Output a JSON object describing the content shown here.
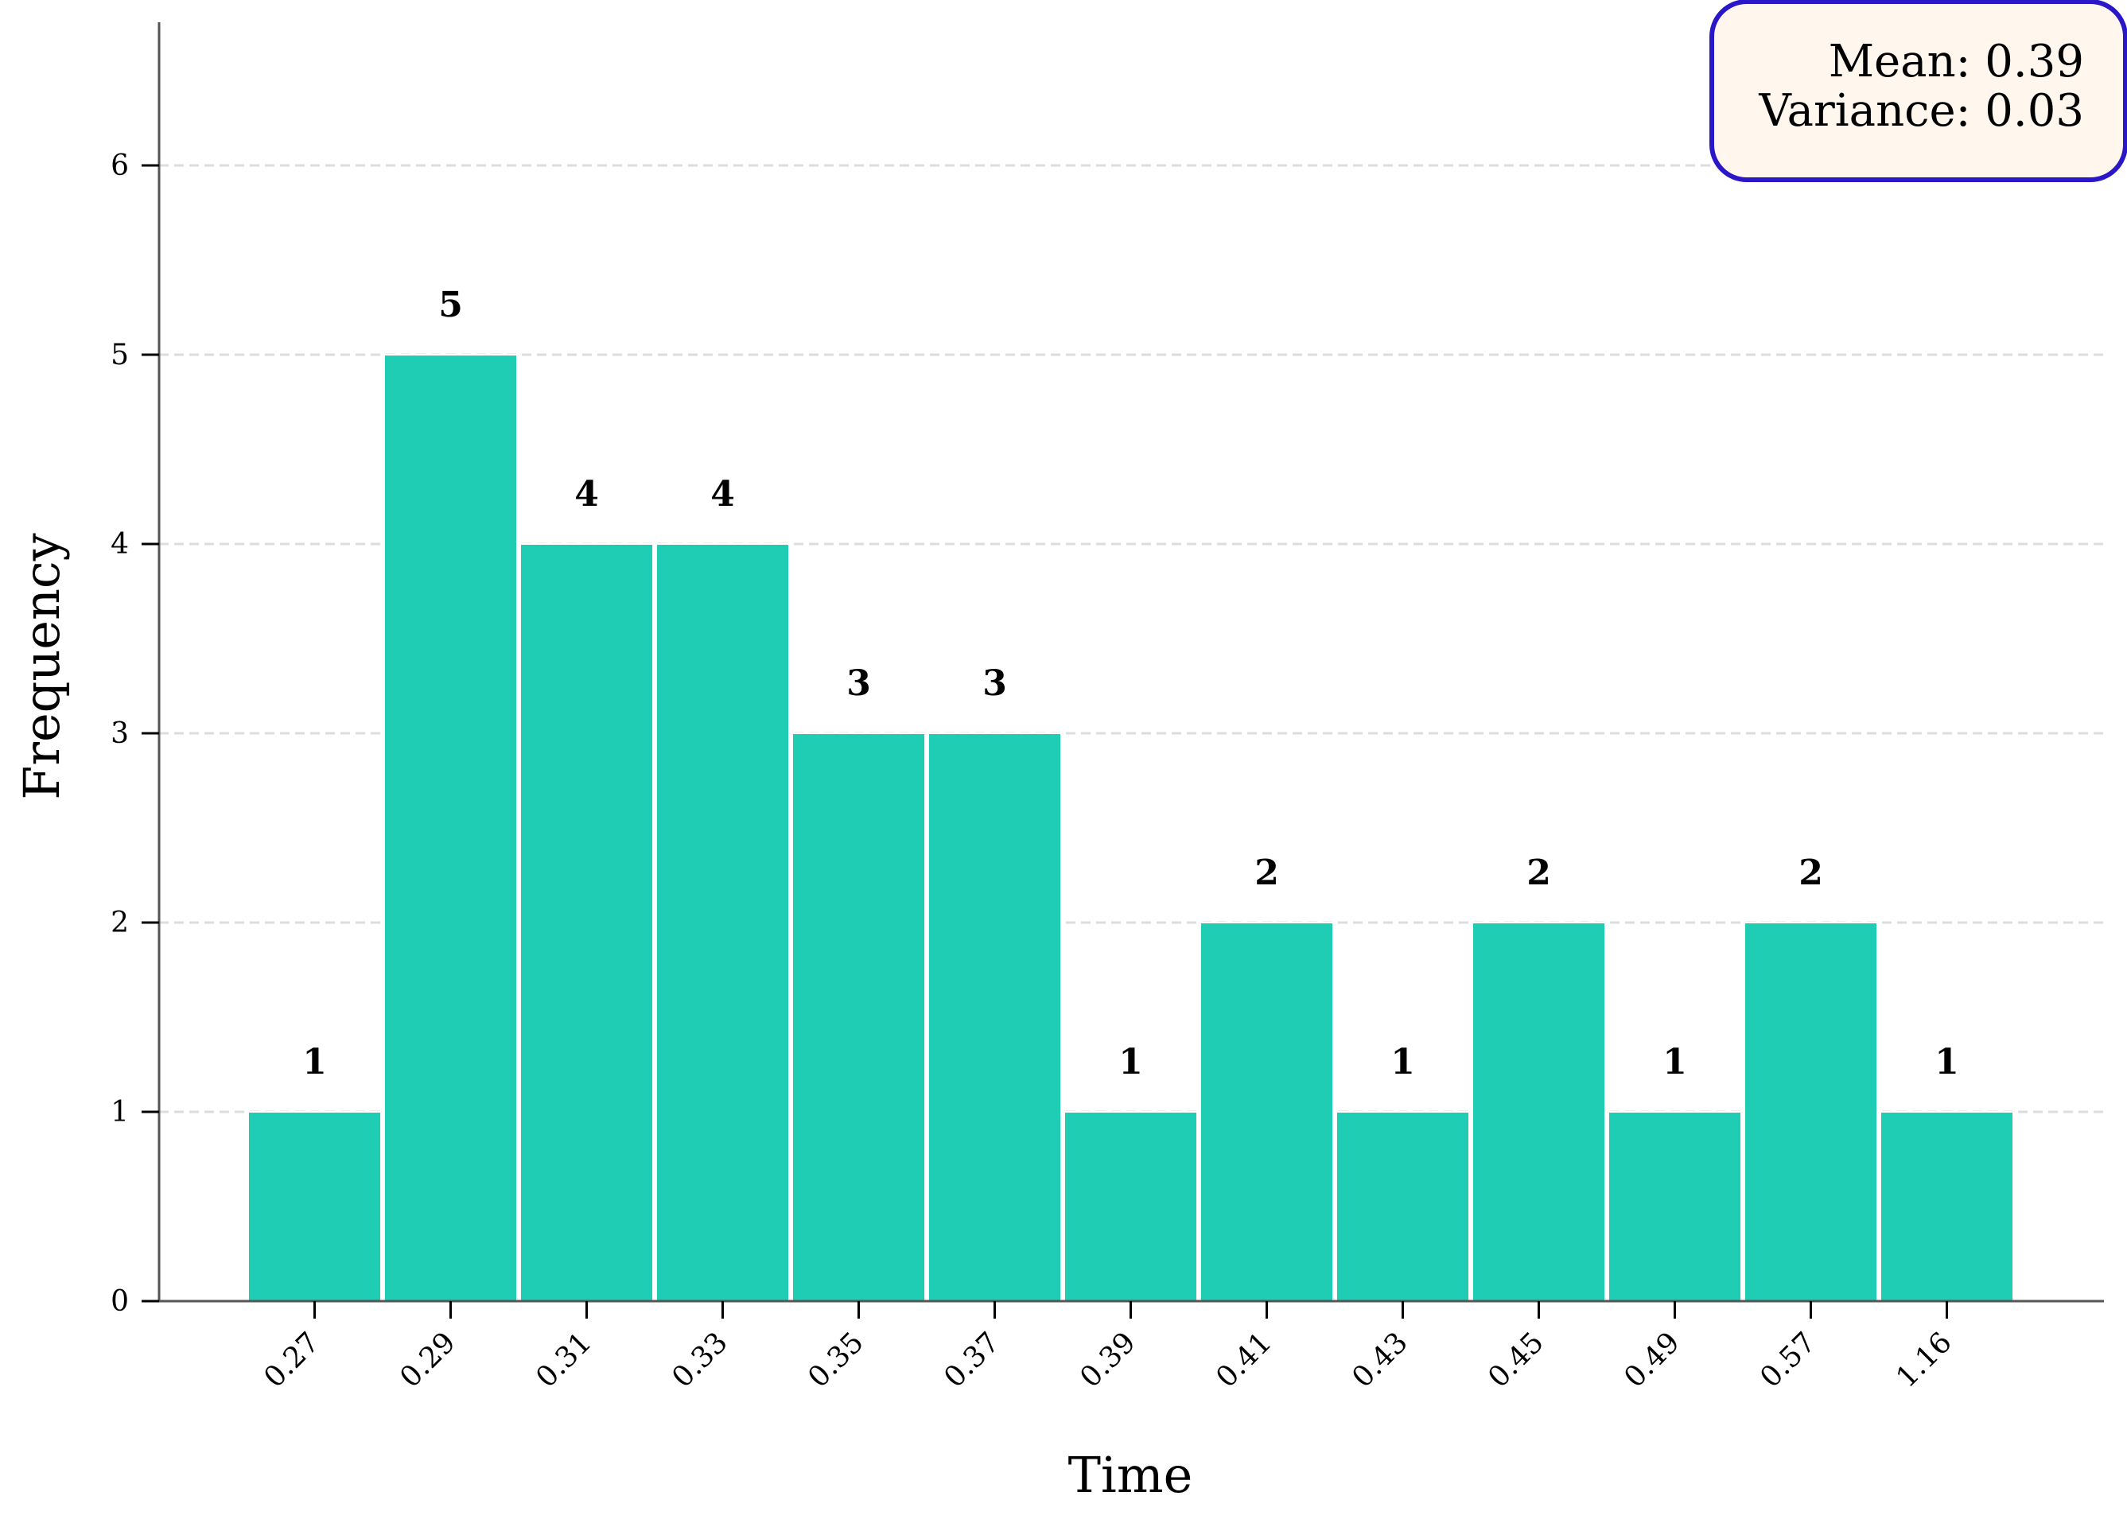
{
  "chart_data": {
    "type": "bar",
    "xlabel": "Time",
    "ylabel": "Frequency",
    "categories": [
      "0.27",
      "0.29",
      "0.31",
      "0.33",
      "0.35",
      "0.37",
      "0.39",
      "0.41",
      "0.43",
      "0.45",
      "0.49",
      "0.57",
      "1.16"
    ],
    "values": [
      1,
      5,
      4,
      4,
      3,
      3,
      1,
      2,
      1,
      2,
      1,
      2,
      1
    ],
    "ylim": [
      0,
      6.8
    ],
    "yticks": [
      0,
      1,
      2,
      3,
      4,
      5,
      6
    ],
    "grid": "horizontal dashed",
    "data_labels": true,
    "stats_box": {
      "position": "top-right",
      "mean_text": "Mean: 0.39",
      "variance_text": "Variance: 0.03"
    },
    "colors": {
      "bar": "#1ecdb4",
      "bar_edge": "#ffffff",
      "grid": "#dddddd",
      "axis": "#555555",
      "stats_box_fill": "#fff7ee",
      "stats_box_border": "#2a18c8"
    }
  }
}
